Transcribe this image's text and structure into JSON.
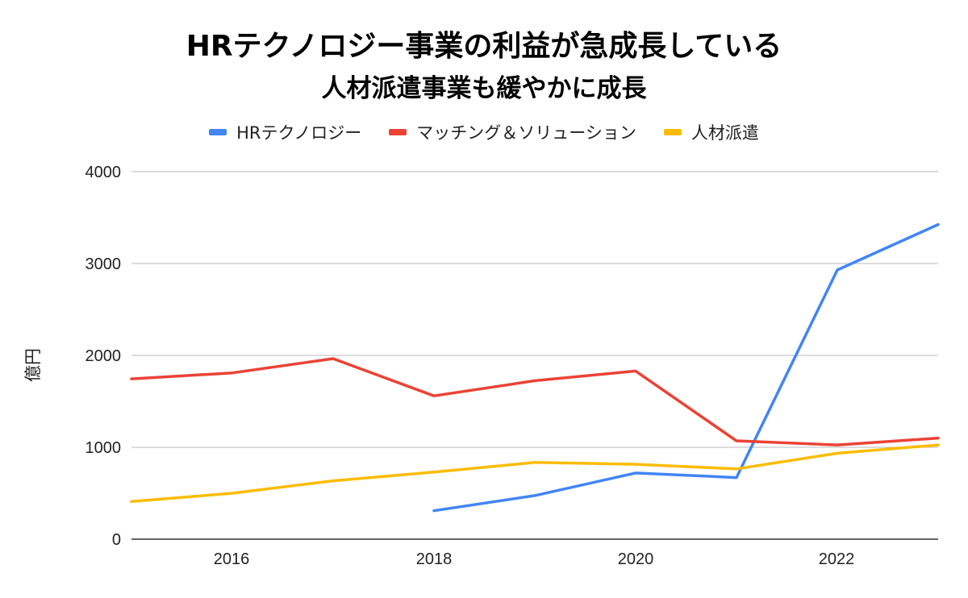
{
  "chart_data": {
    "type": "line",
    "title": "HRテクノロジー事業の利益が急成長している",
    "subtitle": "人材派遣事業も緩やかに成長",
    "xlabel": "",
    "ylabel": "億円",
    "xlim": [
      2015,
      2023
    ],
    "ylim": [
      0,
      4000
    ],
    "x_ticks": [
      "2016",
      "2018",
      "2020",
      "2022"
    ],
    "y_ticks": [
      "4000",
      "3000",
      "2000",
      "1000",
      "0"
    ],
    "grid": true,
    "legend_position": "top",
    "series": [
      {
        "name": "HRテクノロジー",
        "color": "#4285f4",
        "x": [
          2018,
          2019,
          2020,
          2021,
          2022,
          2023
        ],
        "values": [
          310,
          475,
          720,
          670,
          2930,
          3425
        ]
      },
      {
        "name": "マッチング＆ソリューション",
        "color": "#ea4335",
        "x": [
          2015,
          2016,
          2017,
          2018,
          2019,
          2020,
          2021,
          2022,
          2023
        ],
        "values": [
          1745,
          1810,
          1965,
          1560,
          1725,
          1830,
          1070,
          1025,
          1100
        ]
      },
      {
        "name": "人材派遣",
        "color": "#fbbc04",
        "x": [
          2015,
          2016,
          2017,
          2018,
          2019,
          2020,
          2021,
          2022,
          2023
        ],
        "values": [
          410,
          500,
          635,
          730,
          835,
          815,
          765,
          935,
          1025
        ]
      }
    ]
  }
}
